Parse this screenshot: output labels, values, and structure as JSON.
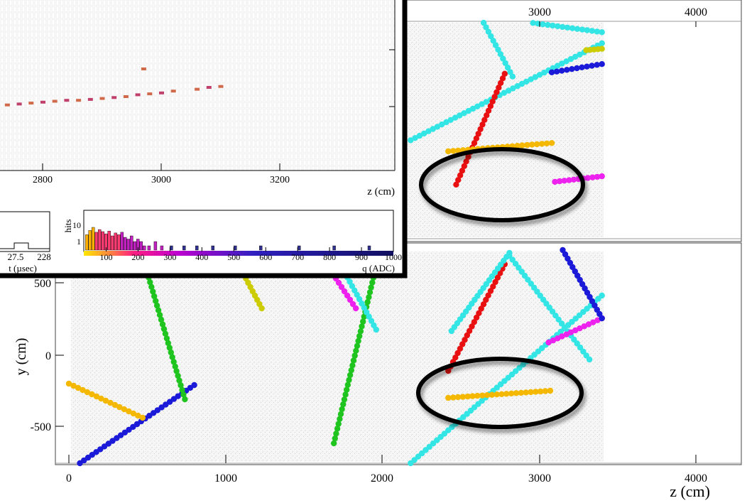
{
  "main_view": {
    "x_axis_label": "z (cm)",
    "y_axis_label": "y (cm)",
    "bottom_x_ticks": [
      "0",
      "1000",
      "2000",
      "3000",
      "4000"
    ],
    "top_x_ticks": [
      "3000",
      "4000"
    ],
    "y_ticks": [
      "500",
      "0",
      "-500"
    ]
  },
  "inset": {
    "x_axis_label": "z (cm)",
    "x_ticks": [
      "2800",
      "3000",
      "3200"
    ],
    "time_hist": {
      "x_label": "t (µsec)",
      "ticks": [
        "27.5",
        "228"
      ]
    },
    "charge_hist": {
      "y_label": "hits",
      "x_label": "q (ADC)",
      "y_ticks": [
        "10",
        "1"
      ],
      "x_ticks": [
        "100",
        "200",
        "300",
        "400",
        "500",
        "600",
        "700",
        "800",
        "900",
        "1000"
      ]
    }
  },
  "chart_data": [
    {
      "type": "scatter",
      "panel": "lower y-z view",
      "xlabel": "z (cm)",
      "ylabel": "y (cm)",
      "xlim": [
        -50,
        4250
      ],
      "ylim": [
        -800,
        780
      ],
      "x_ticks": [
        0,
        1000,
        2000,
        3000,
        4000
      ],
      "y_ticks": [
        500,
        0,
        -500
      ],
      "tracks": [
        {
          "color": "#1a1ad8",
          "points": [
            [
              70,
              -760
            ],
            [
              800,
              -210
            ]
          ]
        },
        {
          "color": "#f5b800",
          "points": [
            [
              0,
              -200
            ],
            [
              470,
              -440
            ]
          ]
        },
        {
          "color": "#1fc41f",
          "points": [
            [
              740,
              -310
            ],
            [
              500,
              580
            ]
          ]
        },
        {
          "color": "#1fc41f",
          "points": [
            [
              1690,
              -620
            ],
            [
              1950,
              580
            ]
          ]
        },
        {
          "color": "#e81010",
          "points": [
            [
              2420,
              -110
            ],
            [
              2780,
              640
            ]
          ]
        },
        {
          "color": "#33e5e5",
          "points": [
            [
              2180,
              -760
            ],
            [
              3400,
              420
            ]
          ]
        },
        {
          "color": "#33e5e5",
          "points": [
            [
              2440,
              170
            ],
            [
              2810,
              720
            ]
          ]
        },
        {
          "color": "#33e5e5",
          "points": [
            [
              2810,
              700
            ],
            [
              3320,
              -30
            ]
          ]
        },
        {
          "color": "#ee22ee",
          "points": [
            [
              3060,
              90
            ],
            [
              3400,
              260
            ]
          ]
        },
        {
          "color": "#f5b800",
          "points": [
            [
              2420,
              -300
            ],
            [
              3070,
              -250
            ]
          ]
        },
        {
          "color": "#1a1ad8",
          "points": [
            [
              3150,
              740
            ],
            [
              3400,
              260
            ]
          ]
        },
        {
          "color": "#ee22ee",
          "points": [
            [
              1630,
              660
            ],
            [
              1830,
              330
            ]
          ]
        },
        {
          "color": "#33e5e5",
          "points": [
            [
              1730,
              640
            ],
            [
              1960,
              180
            ]
          ]
        },
        {
          "color": "#cccc00",
          "points": [
            [
              1100,
              600
            ],
            [
              1230,
              330
            ]
          ]
        }
      ],
      "annotation": {
        "type": "ellipse",
        "center": [
          2760,
          -300
        ],
        "radii": [
          520,
          220
        ]
      }
    },
    {
      "type": "scatter",
      "panel": "upper x-z view",
      "x_ticks": [
        3000,
        4000
      ],
      "tracks": [
        {
          "color": "#33e5e5",
          "points": [
            [
              2180,
              680
            ],
            [
              3400,
              1380
            ]
          ]
        },
        {
          "color": "#33e5e5",
          "points": [
            [
              2630,
              1560
            ],
            [
              2830,
              1140
            ]
          ]
        },
        {
          "color": "#33e5e5",
          "points": [
            [
              2740,
              1560
            ],
            [
              3400,
              1460
            ]
          ]
        },
        {
          "color": "#e81010",
          "points": [
            [
              2470,
              360
            ],
            [
              2780,
              1160
            ]
          ]
        },
        {
          "color": "#f5b800",
          "points": [
            [
              2420,
              600
            ],
            [
              3080,
              660
            ]
          ]
        },
        {
          "color": "#1a1ad8",
          "points": [
            [
              3080,
              1170
            ],
            [
              3400,
              1230
            ]
          ]
        },
        {
          "color": "#cccc00",
          "points": [
            [
              3300,
              1330
            ],
            [
              3400,
              1340
            ]
          ]
        },
        {
          "color": "#ee22ee",
          "points": [
            [
              3100,
              380
            ],
            [
              3400,
              420
            ]
          ]
        }
      ],
      "annotation": {
        "type": "ellipse",
        "center": [
          2760,
          600
        ],
        "radii": [
          510,
          215
        ]
      }
    },
    {
      "type": "scatter",
      "panel": "inset zoom",
      "xlabel": "z (cm)",
      "x_ticks": [
        2800,
        3000,
        3200
      ],
      "hits": [
        [
          2660,
          70
        ],
        [
          2680,
          69
        ],
        [
          2700,
          70
        ],
        [
          2720,
          70
        ],
        [
          2740,
          71
        ],
        [
          2760,
          72
        ],
        [
          2780,
          73
        ],
        [
          2800,
          74
        ],
        [
          2820,
          75
        ],
        [
          2840,
          76
        ],
        [
          2860,
          76
        ],
        [
          2880,
          77
        ],
        [
          2900,
          78
        ],
        [
          2920,
          79
        ],
        [
          2940,
          80
        ],
        [
          2960,
          82
        ],
        [
          2980,
          83
        ],
        [
          3000,
          84
        ],
        [
          3020,
          86
        ],
        [
          3060,
          88
        ],
        [
          3080,
          90
        ],
        [
          3100,
          91
        ],
        [
          2970,
          110
        ]
      ]
    },
    {
      "type": "bar",
      "panel": "charge histogram",
      "xlabel": "q (ADC)",
      "ylabel": "hits",
      "xlim": [
        30,
        1000
      ],
      "log_y": true,
      "x_ticks": [
        100,
        200,
        300,
        400,
        500,
        600,
        700,
        800,
        900,
        1000
      ],
      "bins": [
        [
          35,
          6
        ],
        [
          45,
          12
        ],
        [
          55,
          20
        ],
        [
          65,
          9
        ],
        [
          75,
          14
        ],
        [
          85,
          10
        ],
        [
          95,
          7
        ],
        [
          105,
          11
        ],
        [
          115,
          5
        ],
        [
          125,
          8
        ],
        [
          135,
          6
        ],
        [
          145,
          9
        ],
        [
          155,
          4
        ],
        [
          165,
          3
        ],
        [
          175,
          5
        ],
        [
          185,
          2
        ],
        [
          195,
          3
        ],
        [
          205,
          2
        ],
        [
          215,
          1
        ],
        [
          230,
          1
        ],
        [
          250,
          2
        ],
        [
          270,
          1
        ],
        [
          300,
          1
        ],
        [
          340,
          1
        ],
        [
          380,
          1
        ],
        [
          430,
          1
        ],
        [
          500,
          1
        ],
        [
          580,
          1
        ],
        [
          700,
          1
        ],
        [
          810,
          1
        ],
        [
          920,
          1
        ]
      ]
    }
  ]
}
